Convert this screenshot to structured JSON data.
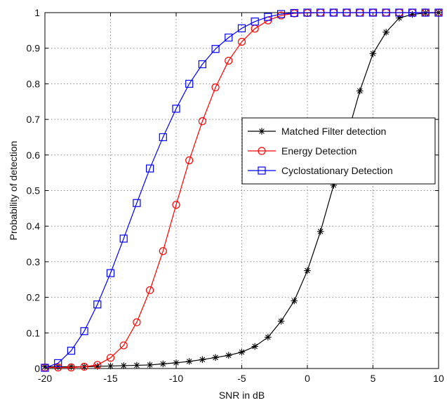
{
  "chart_data": {
    "type": "line",
    "title": "",
    "xlabel": "SNR in dB",
    "ylabel": "Probability of detection",
    "xlim": [
      -20,
      10
    ],
    "ylim": [
      0,
      1
    ],
    "x_ticks": [
      -20,
      -15,
      -10,
      -5,
      0,
      5,
      10
    ],
    "y_ticks": [
      0,
      0.1,
      0.2,
      0.3,
      0.4,
      0.5,
      0.6,
      0.7,
      0.8,
      0.9,
      1
    ],
    "x_tick_labels": [
      "-20",
      "-15",
      "-10",
      "-5",
      "0",
      "5",
      "10"
    ],
    "y_tick_labels": [
      "0",
      "0.1",
      "0.2",
      "0.3",
      "0.4",
      "0.5",
      "0.6",
      "0.7",
      "0.8",
      "0.9",
      "1"
    ],
    "grid": true,
    "legend_position": "center-right",
    "series": [
      {
        "name": "Matched Filter detection",
        "color": "#000000",
        "marker": "star",
        "x": [
          -20,
          -19,
          -18,
          -17,
          -16,
          -15,
          -14,
          -13,
          -12,
          -11,
          -10,
          -9,
          -8,
          -7,
          -6,
          -5,
          -4,
          -3,
          -2,
          -1,
          0,
          1,
          2,
          3,
          4,
          5,
          6,
          7,
          8,
          9,
          10
        ],
        "y": [
          0.005,
          0.005,
          0.005,
          0.005,
          0.006,
          0.007,
          0.008,
          0.009,
          0.01,
          0.013,
          0.016,
          0.02,
          0.025,
          0.031,
          0.037,
          0.046,
          0.062,
          0.088,
          0.133,
          0.19,
          0.275,
          0.385,
          0.515,
          0.65,
          0.78,
          0.885,
          0.945,
          0.985,
          0.995,
          0.999,
          1.0
        ]
      },
      {
        "name": "Energy Detection",
        "color": "#ff0000",
        "marker": "circle",
        "x": [
          -20,
          -19,
          -18,
          -17,
          -16,
          -15,
          -14,
          -13,
          -12,
          -11,
          -10,
          -9,
          -8,
          -7,
          -6,
          -5,
          -4,
          -3,
          -2,
          -1,
          0,
          1,
          2,
          3,
          4,
          5,
          6,
          7,
          8,
          9,
          10
        ],
        "y": [
          0.003,
          0.003,
          0.003,
          0.005,
          0.01,
          0.03,
          0.065,
          0.13,
          0.22,
          0.33,
          0.46,
          0.585,
          0.695,
          0.79,
          0.865,
          0.918,
          0.955,
          0.978,
          0.992,
          0.998,
          0.999,
          1.0,
          1.0,
          1.0,
          1.0,
          1.0,
          1.0,
          1.0,
          1.0,
          1.0,
          1.0
        ]
      },
      {
        "name": "Cyclostationary Detection",
        "color": "#0000ff",
        "marker": "square",
        "x": [
          -20,
          -19,
          -18,
          -17,
          -16,
          -15,
          -14,
          -13,
          -12,
          -11,
          -10,
          -9,
          -8,
          -7,
          -6,
          -5,
          -4,
          -3,
          -2,
          -1,
          0,
          1,
          2,
          3,
          4,
          5,
          6,
          7,
          8,
          9,
          10
        ],
        "y": [
          0.002,
          0.015,
          0.05,
          0.105,
          0.18,
          0.268,
          0.365,
          0.465,
          0.562,
          0.65,
          0.73,
          0.8,
          0.855,
          0.898,
          0.93,
          0.956,
          0.975,
          0.988,
          0.996,
          0.999,
          1.0,
          1.0,
          1.0,
          1.0,
          1.0,
          1.0,
          1.0,
          1.0,
          1.0,
          1.0,
          1.0
        ]
      }
    ]
  }
}
